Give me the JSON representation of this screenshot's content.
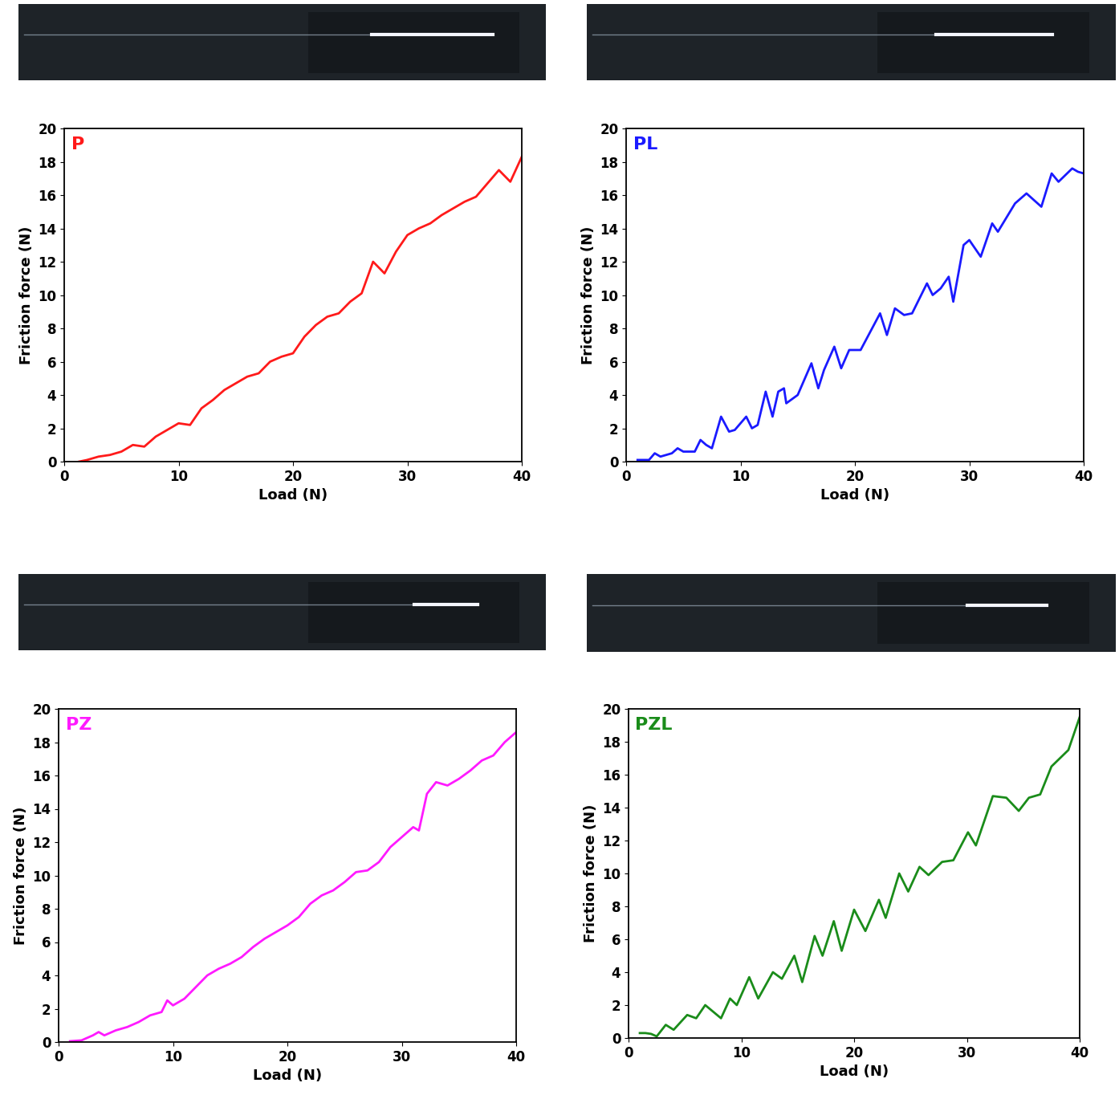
{
  "chart_data": [
    {
      "type": "line",
      "title": "P",
      "x_label": "Load (N)",
      "y_label": "Friction force (N)",
      "color": "#ff1a1a",
      "xlim": [
        0,
        40
      ],
      "ylim": [
        0,
        20
      ],
      "xticks": [
        0,
        10,
        20,
        30,
        40
      ],
      "yticks": [
        0,
        2,
        4,
        6,
        8,
        10,
        12,
        14,
        16,
        18,
        20
      ],
      "x": [
        1.3,
        2,
        3,
        4,
        5,
        6,
        7,
        8,
        9,
        10,
        11,
        12,
        13,
        14,
        15,
        16,
        17,
        18,
        19,
        20,
        21,
        22,
        23,
        24,
        25,
        26,
        27,
        28,
        29,
        30,
        31,
        32,
        33,
        34,
        35,
        36,
        37,
        38,
        39,
        40
      ],
      "values": [
        0,
        0.1,
        0.3,
        0.4,
        0.6,
        1.0,
        0.9,
        1.5,
        1.9,
        2.3,
        2.2,
        3.2,
        3.7,
        4.3,
        4.7,
        5.1,
        5.3,
        6.0,
        6.3,
        6.5,
        7.5,
        8.2,
        8.7,
        8.9,
        9.6,
        10.1,
        12.0,
        11.3,
        12.6,
        13.6,
        14.0,
        14.3,
        14.8,
        15.2,
        15.6,
        15.9,
        16.7,
        17.5,
        16.8,
        18.3
      ]
    },
    {
      "type": "line",
      "title": "PL",
      "x_label": "Load (N)",
      "y_label": "Friction force (N)",
      "color": "#1a1aff",
      "xlim": [
        0,
        40
      ],
      "ylim": [
        0,
        20
      ],
      "xticks": [
        0,
        10,
        20,
        30,
        40
      ],
      "yticks": [
        0,
        2,
        4,
        6,
        8,
        10,
        12,
        14,
        16,
        18,
        20
      ],
      "x": [
        1,
        2,
        2.5,
        3,
        4,
        4.5,
        5,
        6,
        6.5,
        7,
        7.5,
        8.3,
        9,
        9.5,
        10.5,
        11,
        11.5,
        12.2,
        12.8,
        13.3,
        13.8,
        14,
        15,
        16.2,
        16.8,
        17.3,
        18.2,
        18.8,
        19.5,
        20.5,
        22.2,
        22.8,
        23.5,
        24.3,
        25,
        26.3,
        26.8,
        27.5,
        28.2,
        28.6,
        29.5,
        30,
        31,
        32,
        32.5,
        34,
        35,
        36.3,
        37.2,
        37.8,
        39,
        39.5,
        40
      ],
      "values": [
        0.1,
        0.1,
        0.5,
        0.3,
        0.5,
        0.8,
        0.6,
        0.6,
        1.3,
        1.0,
        0.8,
        2.7,
        1.8,
        1.9,
        2.7,
        2.0,
        2.2,
        4.2,
        2.7,
        4.2,
        4.4,
        3.5,
        4.0,
        5.9,
        4.4,
        5.5,
        6.9,
        5.6,
        6.7,
        6.7,
        8.9,
        7.6,
        9.2,
        8.8,
        8.9,
        10.7,
        10.0,
        10.4,
        11.1,
        9.6,
        13.0,
        13.3,
        12.3,
        14.3,
        13.8,
        15.5,
        16.1,
        15.3,
        17.3,
        16.8,
        17.6,
        17.4,
        17.3
      ]
    },
    {
      "type": "line",
      "title": "PZ",
      "x_label": "Load (N)",
      "y_label": "Friction force (N)",
      "color": "#ff1aff",
      "xlim": [
        0,
        40
      ],
      "ylim": [
        0,
        20
      ],
      "xticks": [
        0,
        10,
        20,
        30,
        40
      ],
      "yticks": [
        0,
        2,
        4,
        6,
        8,
        10,
        12,
        14,
        16,
        18,
        20
      ],
      "x": [
        1,
        2,
        3,
        3.5,
        4,
        5,
        6,
        7,
        8,
        9,
        9.5,
        10,
        11,
        12,
        13,
        14,
        15,
        16,
        17,
        18,
        19,
        20,
        21,
        22,
        23,
        24,
        25,
        26,
        27,
        28,
        29,
        30,
        31,
        31.5,
        32.2,
        33,
        34,
        35,
        36,
        37,
        38,
        39,
        40
      ],
      "values": [
        0.05,
        0.1,
        0.4,
        0.6,
        0.4,
        0.7,
        0.9,
        1.2,
        1.6,
        1.8,
        2.5,
        2.2,
        2.6,
        3.3,
        4.0,
        4.4,
        4.7,
        5.1,
        5.7,
        6.2,
        6.6,
        7.0,
        7.5,
        8.3,
        8.8,
        9.1,
        9.6,
        10.2,
        10.3,
        10.8,
        11.7,
        12.3,
        12.9,
        12.7,
        14.9,
        15.6,
        15.4,
        15.8,
        16.3,
        16.9,
        17.2,
        18.0,
        18.6
      ]
    },
    {
      "type": "line",
      "title": "PZL",
      "x_label": "Load (N)",
      "y_label": "Friction force (N)",
      "color": "#1a8c1a",
      "xlim": [
        0,
        40
      ],
      "ylim": [
        0,
        20
      ],
      "xticks": [
        0,
        10,
        20,
        30,
        40
      ],
      "yticks": [
        0,
        2,
        4,
        6,
        8,
        10,
        12,
        14,
        16,
        18,
        20
      ],
      "x": [
        1,
        1.5,
        2,
        2.5,
        3.3,
        4,
        5.2,
        6,
        6.8,
        7.5,
        8.2,
        9,
        9.6,
        10.7,
        11.5,
        12.8,
        13.6,
        14.7,
        15.4,
        16.5,
        17.2,
        18.2,
        18.9,
        20,
        21,
        22.2,
        22.8,
        24,
        24.8,
        25.8,
        26.6,
        27.8,
        28.8,
        30.1,
        30.8,
        32.3,
        33.5,
        34.6,
        35.5,
        36.5,
        37.5,
        39,
        40
      ],
      "values": [
        0.3,
        0.3,
        0.25,
        0.1,
        0.8,
        0.5,
        1.4,
        1.2,
        2.0,
        1.6,
        1.2,
        2.4,
        2.0,
        3.7,
        2.4,
        4.0,
        3.6,
        5.0,
        3.4,
        6.2,
        5.0,
        7.1,
        5.3,
        7.8,
        6.5,
        8.4,
        7.3,
        10.0,
        8.9,
        10.4,
        9.9,
        10.7,
        10.8,
        12.5,
        11.7,
        14.7,
        14.6,
        13.8,
        14.6,
        14.8,
        16.5,
        17.5,
        19.5
      ]
    }
  ]
}
